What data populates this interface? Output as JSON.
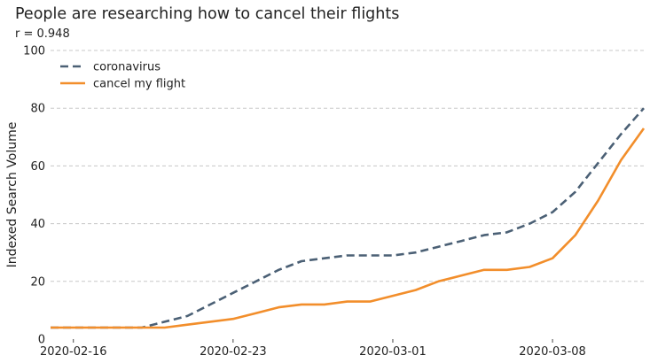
{
  "chart_data": {
    "type": "line",
    "title": "People are researching how to cancel their flights",
    "subtitle": "r = 0.948",
    "xlabel": "",
    "ylabel": "Indexed Search Volume",
    "ylim": [
      0,
      100
    ],
    "yticks": [
      "0",
      "20",
      "40",
      "60",
      "80",
      "100"
    ],
    "xticks": [
      "2020-02-16",
      "2020-02-23",
      "2020-03-01",
      "2020-03-08"
    ],
    "grid": "horizontal dashed",
    "legend_position": "top-left",
    "x": [
      "2020-02-15",
      "2020-02-16",
      "2020-02-17",
      "2020-02-18",
      "2020-02-19",
      "2020-02-20",
      "2020-02-21",
      "2020-02-22",
      "2020-02-23",
      "2020-02-24",
      "2020-02-25",
      "2020-02-26",
      "2020-02-27",
      "2020-02-28",
      "2020-02-29",
      "2020-03-01",
      "2020-03-02",
      "2020-03-03",
      "2020-03-04",
      "2020-03-05",
      "2020-03-06",
      "2020-03-07",
      "2020-03-08",
      "2020-03-09",
      "2020-03-10",
      "2020-03-11",
      "2020-03-12"
    ],
    "series": [
      {
        "name": "coronavirus",
        "color": "#4b6075",
        "style": "dashed",
        "values": [
          4,
          4,
          4,
          4,
          4,
          6,
          8,
          12,
          16,
          20,
          24,
          27,
          28,
          29,
          29,
          29,
          30,
          32,
          34,
          36,
          37,
          40,
          44,
          51,
          61,
          71,
          80
        ]
      },
      {
        "name": "cancel my flight",
        "color": "#f28e2b",
        "style": "solid",
        "values": [
          4,
          4,
          4,
          4,
          4,
          4,
          5,
          6,
          7,
          9,
          11,
          12,
          12,
          13,
          13,
          15,
          17,
          20,
          22,
          24,
          24,
          25,
          28,
          36,
          48,
          62,
          73
        ]
      }
    ]
  }
}
